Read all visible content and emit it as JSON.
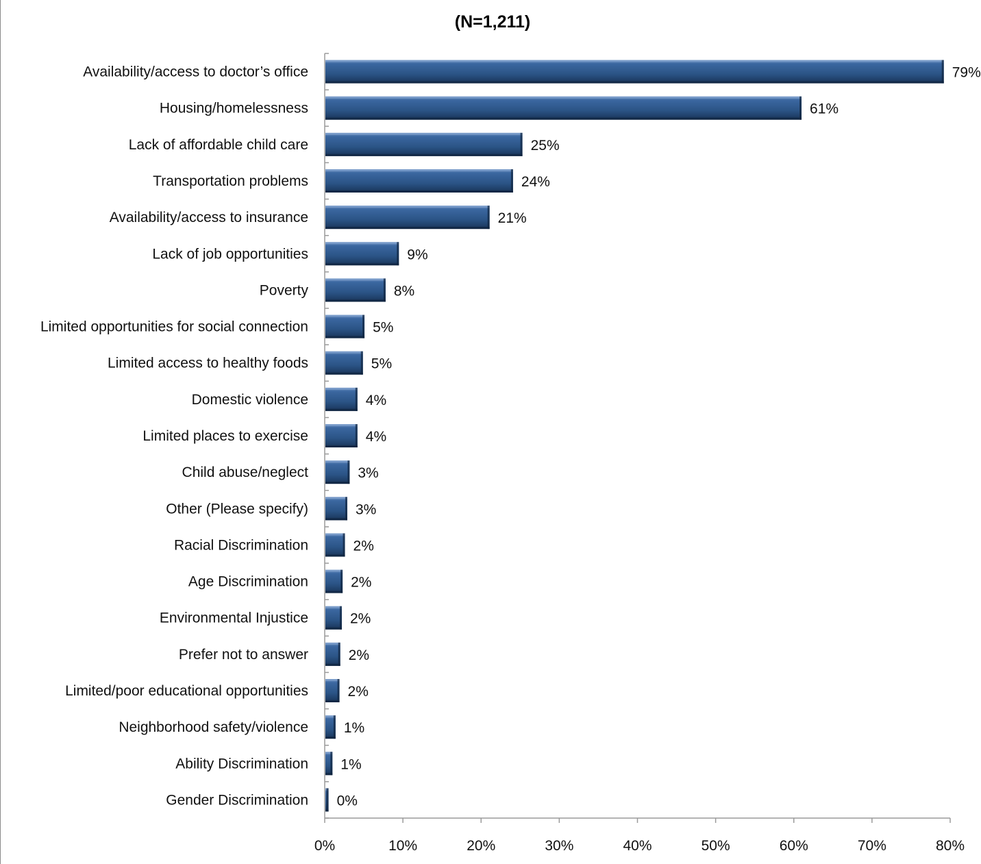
{
  "chart_data": {
    "type": "bar",
    "orientation": "horizontal",
    "title": "(N=1,211)",
    "xlabel": "",
    "ylabel": "",
    "xlim": [
      0,
      80
    ],
    "x_ticks": [
      "0%",
      "10%",
      "20%",
      "30%",
      "40%",
      "50%",
      "60%",
      "70%",
      "80%"
    ],
    "grid": false,
    "legend": "none",
    "bar_color": "#2b5486",
    "categories": [
      "Availability/access to doctor’s office",
      "Housing/homelessness",
      "Lack of affordable child care",
      "Transportation problems",
      "Availability/access to insurance",
      "Lack of job opportunities",
      "Poverty",
      "Limited opportunities for social connection",
      "Limited access to healthy foods",
      "Domestic violence",
      "Limited places to exercise",
      "Child abuse/neglect",
      "Other (Please specify)",
      "Racial Discrimination",
      "Age Discrimination",
      "Environmental Injustice",
      "Prefer not to answer",
      "Limited/poor educational opportunities",
      "Neighborhood safety/violence",
      "Ability Discrimination",
      "Gender Discrimination"
    ],
    "values": [
      79.1,
      60.9,
      25.2,
      24.0,
      21.0,
      9.4,
      7.7,
      5.0,
      4.8,
      4.1,
      4.1,
      3.1,
      2.8,
      2.5,
      2.2,
      2.1,
      1.9,
      1.8,
      1.3,
      0.9,
      0.4
    ],
    "data_labels": [
      "79%",
      "61%",
      "25%",
      "24%",
      "21%",
      "9%",
      "8%",
      "5%",
      "5%",
      "4%",
      "4%",
      "3%",
      "3%",
      "2%",
      "2%",
      "2%",
      "2%",
      "2%",
      "1%",
      "1%",
      "0%"
    ]
  }
}
